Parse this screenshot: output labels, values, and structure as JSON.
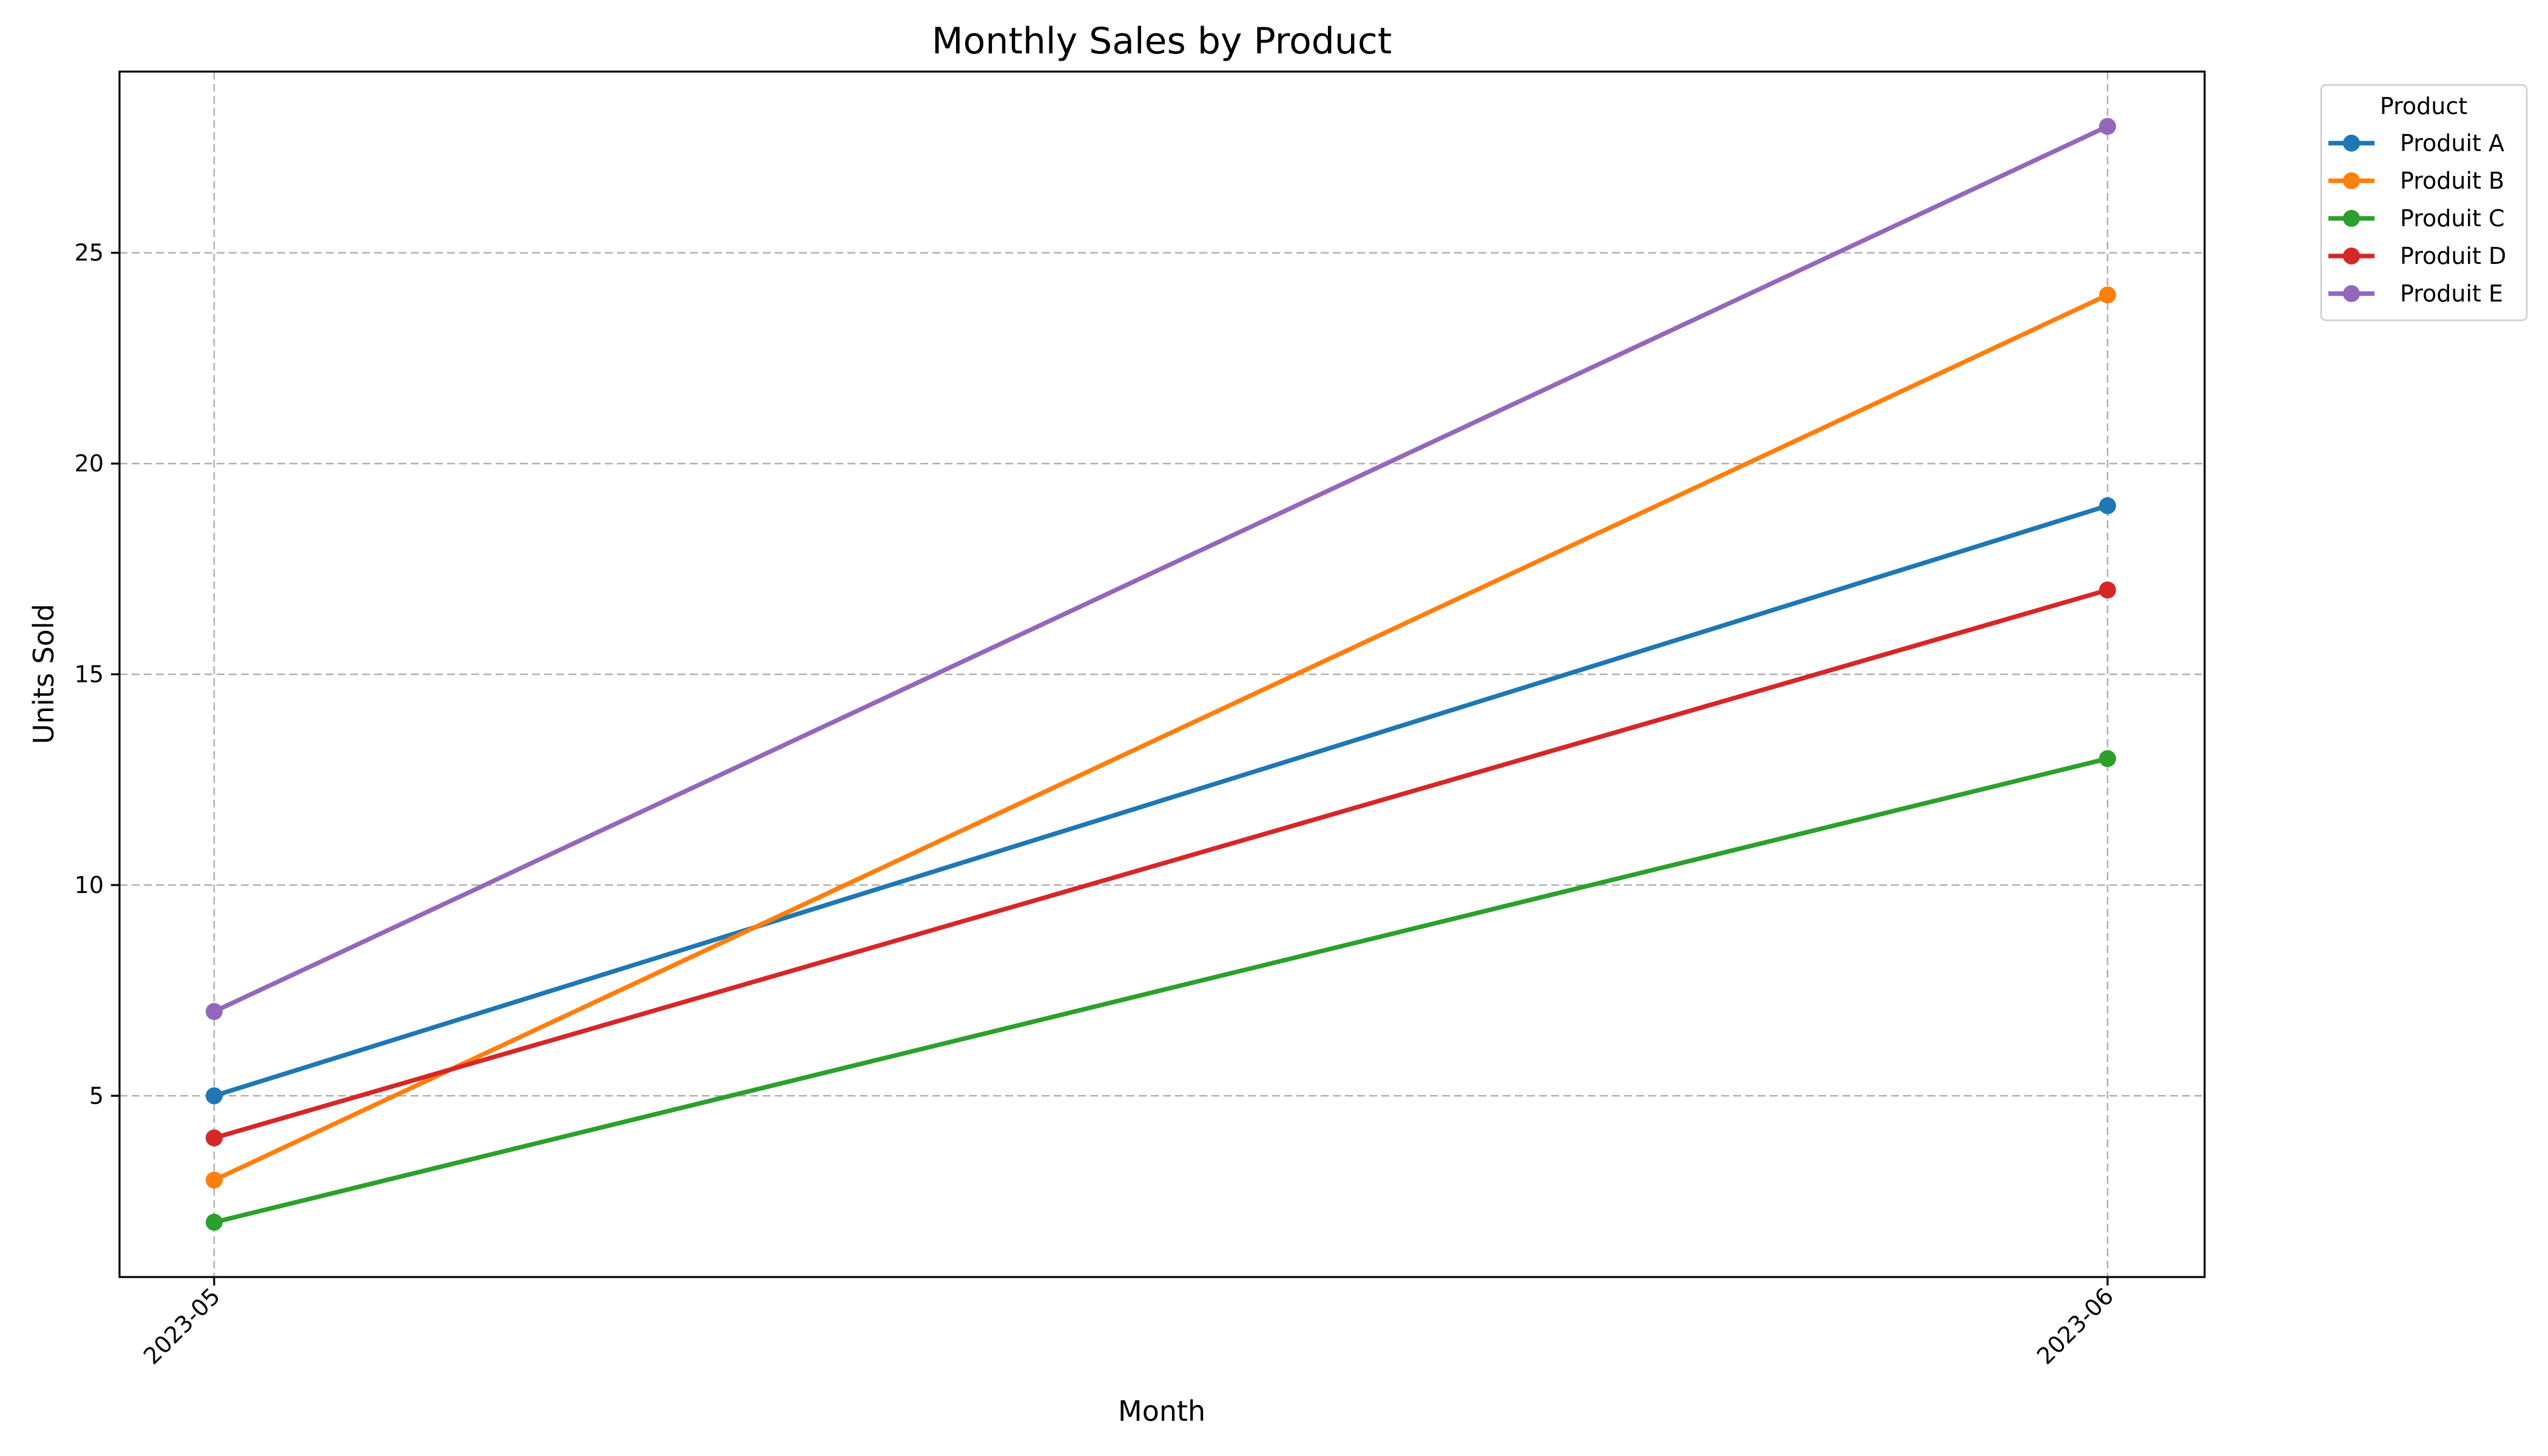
{
  "chart_data": {
    "type": "line",
    "title": "Monthly Sales by Product",
    "xlabel": "Month",
    "ylabel": "Units Sold",
    "categories": [
      "2023-05",
      "2023-06"
    ],
    "yticks": [
      5,
      10,
      15,
      20,
      25
    ],
    "ylim": [
      0.7,
      29.3
    ],
    "grid": true,
    "legend": {
      "title": "Product",
      "placement": "outside upper right"
    },
    "series": [
      {
        "name": "Produit A",
        "color": "#1f77b4",
        "values": [
          5,
          19
        ]
      },
      {
        "name": "Produit B",
        "color": "#ff7f0e",
        "values": [
          3,
          24
        ]
      },
      {
        "name": "Produit C",
        "color": "#2ca02c",
        "values": [
          2,
          13
        ]
      },
      {
        "name": "Produit D",
        "color": "#d62728",
        "values": [
          4,
          17
        ]
      },
      {
        "name": "Produit E",
        "color": "#9467bd",
        "values": [
          7,
          28
        ]
      }
    ]
  }
}
